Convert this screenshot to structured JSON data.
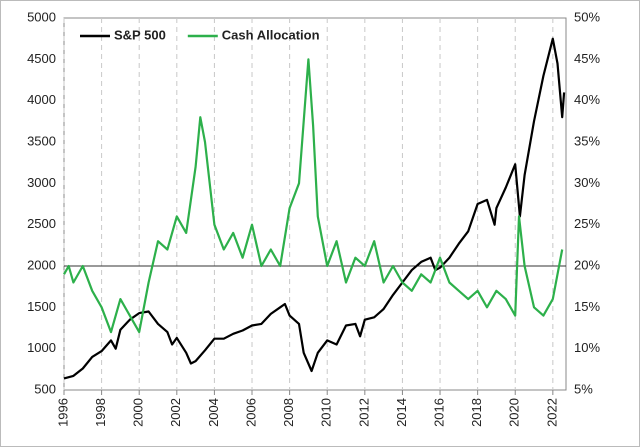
{
  "chart_data": {
    "type": "line",
    "xlim": [
      1996,
      2022.7
    ],
    "xticks": [
      1996,
      1998,
      2000,
      2002,
      2004,
      2006,
      2008,
      2010,
      2012,
      2014,
      2016,
      2018,
      2020,
      2022
    ],
    "ylim": [
      500,
      5000
    ],
    "yticks": [
      500,
      1000,
      1500,
      2000,
      2500,
      3000,
      3500,
      4000,
      4500,
      5000
    ],
    "y2lim": [
      5,
      50
    ],
    "y2ticks": [
      {
        "value": 5,
        "label": "5%"
      },
      {
        "value": 10,
        "label": "10%"
      },
      {
        "value": 15,
        "label": "15%"
      },
      {
        "value": 20,
        "label": "20%"
      },
      {
        "value": 25,
        "label": "25%"
      },
      {
        "value": 30,
        "label": "30%"
      },
      {
        "value": 35,
        "label": "35%"
      },
      {
        "value": 40,
        "label": "40%"
      },
      {
        "value": 45,
        "label": "45%"
      },
      {
        "value": 50,
        "label": "50%"
      }
    ],
    "reference_line": 2000,
    "grid": true,
    "legend": "top-left",
    "series": [
      {
        "name": "S&P 500",
        "color": "#000000",
        "axis": "y",
        "x": [
          1996,
          1996.5,
          1997,
          1997.5,
          1998,
          1998.5,
          1998.75,
          1999,
          1999.5,
          2000,
          2000.5,
          2001,
          2001.5,
          2001.75,
          2002,
          2002.5,
          2002.75,
          2003,
          2003.5,
          2004,
          2004.5,
          2005,
          2005.5,
          2006,
          2006.5,
          2007,
          2007.5,
          2007.75,
          2008,
          2008.5,
          2008.75,
          2009.17,
          2009.5,
          2010,
          2010.5,
          2011,
          2011.5,
          2011.75,
          2012,
          2012.5,
          2013,
          2013.5,
          2014,
          2014.5,
          2015,
          2015.5,
          2015.75,
          2016,
          2016.5,
          2017,
          2017.5,
          2018,
          2018.5,
          2018.9,
          2019,
          2019.5,
          2020,
          2020.25,
          2020.5,
          2021,
          2021.5,
          2022,
          2022.25,
          2022.5,
          2022.6
        ],
        "values": [
          640,
          670,
          760,
          900,
          970,
          1100,
          1000,
          1230,
          1350,
          1430,
          1450,
          1300,
          1200,
          1050,
          1130,
          950,
          820,
          850,
          980,
          1120,
          1120,
          1180,
          1220,
          1280,
          1300,
          1420,
          1500,
          1540,
          1400,
          1300,
          950,
          730,
          950,
          1100,
          1050,
          1280,
          1300,
          1150,
          1350,
          1380,
          1480,
          1650,
          1800,
          1950,
          2050,
          2100,
          1950,
          1980,
          2100,
          2270,
          2420,
          2750,
          2800,
          2500,
          2700,
          2950,
          3230,
          2600,
          3100,
          3750,
          4300,
          4750,
          4450,
          3800,
          4100
        ]
      },
      {
        "name": "Cash Allocation",
        "color": "#2db04b",
        "axis": "y2",
        "x": [
          1996,
          1996.25,
          1996.5,
          1997,
          1997.5,
          1998,
          1998.5,
          1999,
          1999.5,
          2000,
          2000.5,
          2001,
          2001.5,
          2002,
          2002.5,
          2003,
          2003.25,
          2003.5,
          2004,
          2004.5,
          2005,
          2005.5,
          2006,
          2006.5,
          2007,
          2007.5,
          2008,
          2008.5,
          2009,
          2009.25,
          2009.5,
          2010,
          2010.5,
          2011,
          2011.5,
          2012,
          2012.5,
          2013,
          2013.5,
          2014,
          2014.5,
          2015,
          2015.5,
          2016,
          2016.5,
          2017,
          2017.5,
          2018,
          2018.5,
          2019,
          2019.5,
          2020,
          2020.2,
          2020.5,
          2021,
          2021.5,
          2022,
          2022.5
        ],
        "values": [
          19,
          20,
          18,
          20,
          17,
          15,
          12,
          16,
          14,
          12,
          18,
          23,
          22,
          26,
          24,
          32,
          38,
          35,
          25,
          22,
          24,
          21,
          25,
          20,
          22,
          20,
          27,
          30,
          45,
          37,
          26,
          20,
          23,
          18,
          21,
          20,
          23,
          18,
          20,
          18,
          17,
          19,
          18,
          21,
          18,
          17,
          16,
          17,
          15,
          17,
          16,
          14,
          26,
          20,
          15,
          14,
          16,
          22
        ]
      }
    ]
  }
}
